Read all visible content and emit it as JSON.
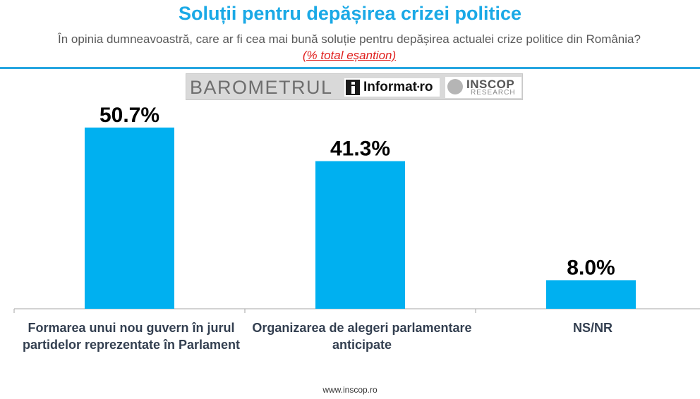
{
  "header": {
    "title": "Soluții pentru depășirea crizei politice",
    "subtitle_text": "În opinia dumneavoastră, care ar fi cea mai bună soluție pentru depășirea actualei crize politice din România?",
    "subtitle_note": "(% total eșantion)"
  },
  "logos": {
    "barometrul": "BAROMETRUL",
    "informat": "Informat",
    "informat_suffix": "ro",
    "inscop": "INSCOP",
    "research": "RESEARCH"
  },
  "colors": {
    "title": "#1aa9e6",
    "bar": "#00b0f0",
    "rule": "#26a6e0",
    "axis": "#a6a6a6",
    "label_value": "#000000",
    "category_text": "#333f50"
  },
  "chart_data": {
    "type": "bar",
    "categories": [
      "Formarea unui nou guvern în jurul partidelor reprezentate în Parlament",
      "Organizarea de alegeri parlamentare anticipate",
      "NS/NR"
    ],
    "values": [
      50.7,
      41.3,
      8.0
    ],
    "data_labels": [
      "50.7%",
      "41.3%",
      "8.0%"
    ],
    "title": "Soluții pentru depășirea crizei politice",
    "xlabel": "",
    "ylabel": "",
    "ylim": [
      0,
      60
    ],
    "grid": false,
    "legend": "none"
  },
  "footer": {
    "url": "www.inscop.ro"
  }
}
